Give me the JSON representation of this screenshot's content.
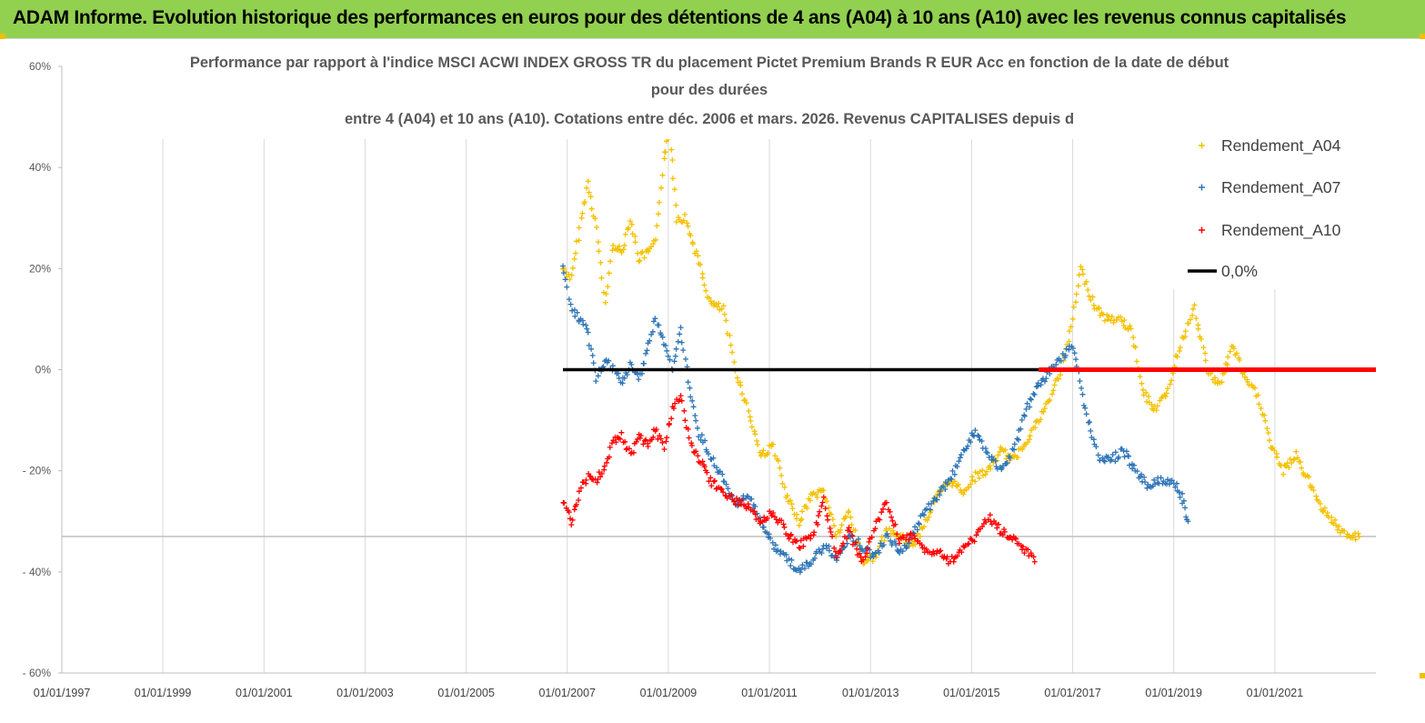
{
  "banner": {
    "title": "ADAM Informe. Evolution historique des performances en euros pour des détentions de 4 ans (A04) à 10 ans (A10) avec les revenus connus capitalisés",
    "color": "#92d050"
  },
  "chart_data": {
    "type": "scatter",
    "title_lines": [
      "Performance par rapport à l'indice MSCI ACWI INDEX GROSS TR  du placement Pictet Premium Brands R EUR Acc en fonction de la date de début",
      "pour des durées",
      "entre 4 (A04) et 10 ans (A10). Cotations entre déc. 2006 et mars. 2026. Revenus CAPITALISES depuis d"
    ],
    "xlabel": "",
    "ylabel": "",
    "x_ticks": [
      "01/01/1997",
      "01/01/1999",
      "01/01/2001",
      "01/01/2003",
      "01/01/2005",
      "01/01/2007",
      "01/01/2009",
      "01/01/2011",
      "01/01/2013",
      "01/01/2015",
      "01/01/2017",
      "01/01/2019",
      "01/01/2021"
    ],
    "y_ticks": [
      "60%",
      "40%",
      "20%",
      "0%",
      "- 20%",
      "- 40%",
      "- 60%"
    ],
    "xlim": [
      "1997-01-01",
      "2023-01-01"
    ],
    "ylim": [
      -60,
      60
    ],
    "grid": "vertical",
    "legend_position": "top-right",
    "series": [
      {
        "name": "Rendement_A04",
        "color": "#f5c100",
        "marker": "+",
        "points": [
          [
            "2006-12-01",
            20
          ],
          [
            "2007-02-01",
            18
          ],
          [
            "2007-04-01",
            28
          ],
          [
            "2007-06-01",
            37
          ],
          [
            "2007-08-01",
            28
          ],
          [
            "2007-10-01",
            13
          ],
          [
            "2007-12-01",
            25
          ],
          [
            "2008-02-01",
            23
          ],
          [
            "2008-04-01",
            30
          ],
          [
            "2008-06-01",
            22
          ],
          [
            "2008-08-01",
            23
          ],
          [
            "2008-10-01",
            25
          ],
          [
            "2008-12-01",
            42
          ],
          [
            "2009-01-15",
            47
          ],
          [
            "2009-03-01",
            30
          ],
          [
            "2009-05-01",
            30
          ],
          [
            "2009-08-01",
            22
          ],
          [
            "2009-11-01",
            13
          ],
          [
            "2010-02-01",
            12
          ],
          [
            "2010-05-01",
            0
          ],
          [
            "2010-08-01",
            -8
          ],
          [
            "2010-11-01",
            -17
          ],
          [
            "2011-02-01",
            -15
          ],
          [
            "2011-05-01",
            -25
          ],
          [
            "2011-08-01",
            -30
          ],
          [
            "2011-11-01",
            -25
          ],
          [
            "2012-02-01",
            -24
          ],
          [
            "2012-05-01",
            -33
          ],
          [
            "2012-08-01",
            -28
          ],
          [
            "2012-11-01",
            -38
          ],
          [
            "2013-02-01",
            -37
          ],
          [
            "2013-05-01",
            -32
          ],
          [
            "2013-08-01",
            -33
          ],
          [
            "2013-11-01",
            -35
          ],
          [
            "2014-02-01",
            -30
          ],
          [
            "2014-05-01",
            -25
          ],
          [
            "2014-08-01",
            -22
          ],
          [
            "2014-11-01",
            -24
          ],
          [
            "2015-02-01",
            -21
          ],
          [
            "2015-05-01",
            -20
          ],
          [
            "2015-08-01",
            -16
          ],
          [
            "2015-11-01",
            -18
          ],
          [
            "2016-02-01",
            -14
          ],
          [
            "2016-05-01",
            -10
          ],
          [
            "2016-08-01",
            -5
          ],
          [
            "2016-11-01",
            2
          ],
          [
            "2017-01-01",
            10
          ],
          [
            "2017-03-01",
            20
          ],
          [
            "2017-06-01",
            13
          ],
          [
            "2017-09-01",
            10
          ],
          [
            "2017-12-01",
            10
          ],
          [
            "2018-03-01",
            8
          ],
          [
            "2018-06-01",
            -5
          ],
          [
            "2018-09-01",
            -8
          ],
          [
            "2018-12-01",
            -3
          ],
          [
            "2019-03-01",
            6
          ],
          [
            "2019-06-01",
            12
          ],
          [
            "2019-09-01",
            0
          ],
          [
            "2019-12-01",
            -3
          ],
          [
            "2020-03-01",
            5
          ],
          [
            "2020-06-01",
            -2
          ],
          [
            "2020-09-01",
            -5
          ],
          [
            "2020-12-01",
            -15
          ],
          [
            "2021-03-01",
            -20
          ],
          [
            "2021-06-01",
            -17
          ],
          [
            "2021-09-01",
            -22
          ],
          [
            "2021-12-01",
            -27
          ],
          [
            "2022-03-01",
            -30
          ],
          [
            "2022-06-01",
            -33
          ],
          [
            "2022-09-01",
            -33
          ]
        ]
      },
      {
        "name": "Rendement_A07",
        "color": "#2e75b6",
        "marker": "+",
        "points": [
          [
            "2006-12-01",
            20
          ],
          [
            "2007-02-01",
            12
          ],
          [
            "2007-04-01",
            10
          ],
          [
            "2007-06-01",
            7
          ],
          [
            "2007-08-01",
            -2
          ],
          [
            "2007-10-01",
            2
          ],
          [
            "2007-12-01",
            0
          ],
          [
            "2008-02-01",
            -3
          ],
          [
            "2008-04-01",
            1
          ],
          [
            "2008-06-01",
            -2
          ],
          [
            "2008-08-01",
            4
          ],
          [
            "2008-10-01",
            10
          ],
          [
            "2008-12-01",
            5
          ],
          [
            "2009-02-01",
            0
          ],
          [
            "2009-04-01",
            8
          ],
          [
            "2009-06-01",
            -4
          ],
          [
            "2009-08-01",
            -12
          ],
          [
            "2009-11-01",
            -17
          ],
          [
            "2010-02-01",
            -22
          ],
          [
            "2010-05-01",
            -27
          ],
          [
            "2010-08-01",
            -25
          ],
          [
            "2010-11-01",
            -30
          ],
          [
            "2011-02-01",
            -35
          ],
          [
            "2011-05-01",
            -37
          ],
          [
            "2011-08-01",
            -40
          ],
          [
            "2011-11-01",
            -38
          ],
          [
            "2012-02-01",
            -35
          ],
          [
            "2012-05-01",
            -37
          ],
          [
            "2012-08-01",
            -33
          ],
          [
            "2012-11-01",
            -35
          ],
          [
            "2013-02-01",
            -37
          ],
          [
            "2013-05-01",
            -33
          ],
          [
            "2013-08-01",
            -36
          ],
          [
            "2013-11-01",
            -33
          ],
          [
            "2014-02-01",
            -28
          ],
          [
            "2014-05-01",
            -25
          ],
          [
            "2014-08-01",
            -22
          ],
          [
            "2014-11-01",
            -16
          ],
          [
            "2015-02-01",
            -12
          ],
          [
            "2015-05-01",
            -17
          ],
          [
            "2015-08-01",
            -20
          ],
          [
            "2015-11-01",
            -16
          ],
          [
            "2016-02-01",
            -8
          ],
          [
            "2016-05-01",
            -3
          ],
          [
            "2016-08-01",
            0
          ],
          [
            "2016-11-01",
            3
          ],
          [
            "2017-01-01",
            5
          ],
          [
            "2017-04-01",
            -8
          ],
          [
            "2017-07-01",
            -17
          ],
          [
            "2017-10-01",
            -18
          ],
          [
            "2018-01-01",
            -16
          ],
          [
            "2018-04-01",
            -20
          ],
          [
            "2018-07-01",
            -23
          ],
          [
            "2018-10-01",
            -22
          ],
          [
            "2019-01-01",
            -22
          ],
          [
            "2019-03-01",
            -25
          ],
          [
            "2019-04-15",
            -30
          ]
        ]
      },
      {
        "name": "Rendement_A10",
        "color": "#ff0000",
        "marker": "+",
        "points": [
          [
            "2006-12-01",
            -26
          ],
          [
            "2007-02-01",
            -30
          ],
          [
            "2007-04-01",
            -24
          ],
          [
            "2007-06-01",
            -21
          ],
          [
            "2007-08-01",
            -22
          ],
          [
            "2007-10-01",
            -19
          ],
          [
            "2007-12-01",
            -14
          ],
          [
            "2008-02-01",
            -13
          ],
          [
            "2008-04-01",
            -17
          ],
          [
            "2008-06-01",
            -13
          ],
          [
            "2008-08-01",
            -15
          ],
          [
            "2008-10-01",
            -12
          ],
          [
            "2008-12-01",
            -15
          ],
          [
            "2009-02-01",
            -8
          ],
          [
            "2009-04-01",
            -5
          ],
          [
            "2009-06-01",
            -14
          ],
          [
            "2009-08-01",
            -17
          ],
          [
            "2009-11-01",
            -22
          ],
          [
            "2010-02-01",
            -24
          ],
          [
            "2010-05-01",
            -26
          ],
          [
            "2010-08-01",
            -27
          ],
          [
            "2010-11-01",
            -30
          ],
          [
            "2011-02-01",
            -28
          ],
          [
            "2011-05-01",
            -32
          ],
          [
            "2011-08-01",
            -35
          ],
          [
            "2011-11-01",
            -33
          ],
          [
            "2012-02-01",
            -26
          ],
          [
            "2012-05-01",
            -37
          ],
          [
            "2012-08-01",
            -32
          ],
          [
            "2012-11-01",
            -38
          ],
          [
            "2013-02-01",
            -31
          ],
          [
            "2013-05-01",
            -26
          ],
          [
            "2013-08-01",
            -34
          ],
          [
            "2013-11-01",
            -33
          ],
          [
            "2014-02-01",
            -36
          ],
          [
            "2014-05-01",
            -36
          ],
          [
            "2014-08-01",
            -38
          ],
          [
            "2014-11-01",
            -35
          ],
          [
            "2015-02-01",
            -33
          ],
          [
            "2015-05-01",
            -29
          ],
          [
            "2015-08-01",
            -32
          ],
          [
            "2015-11-01",
            -33
          ],
          [
            "2016-02-01",
            -36
          ],
          [
            "2016-04-01",
            -38
          ]
        ]
      },
      {
        "name": "0,0%",
        "color": "#000000",
        "style": "line",
        "points": [
          [
            "2006-12-01",
            0
          ],
          [
            "2016-05-01",
            0
          ]
        ]
      }
    ],
    "red_zero_segment": {
      "from": "2016-05-01",
      "to": "2023-01-01",
      "value": 0,
      "color": "#ff0000"
    },
    "grey_reference_line": {
      "value": -33,
      "color": "#bfbfbf"
    }
  }
}
